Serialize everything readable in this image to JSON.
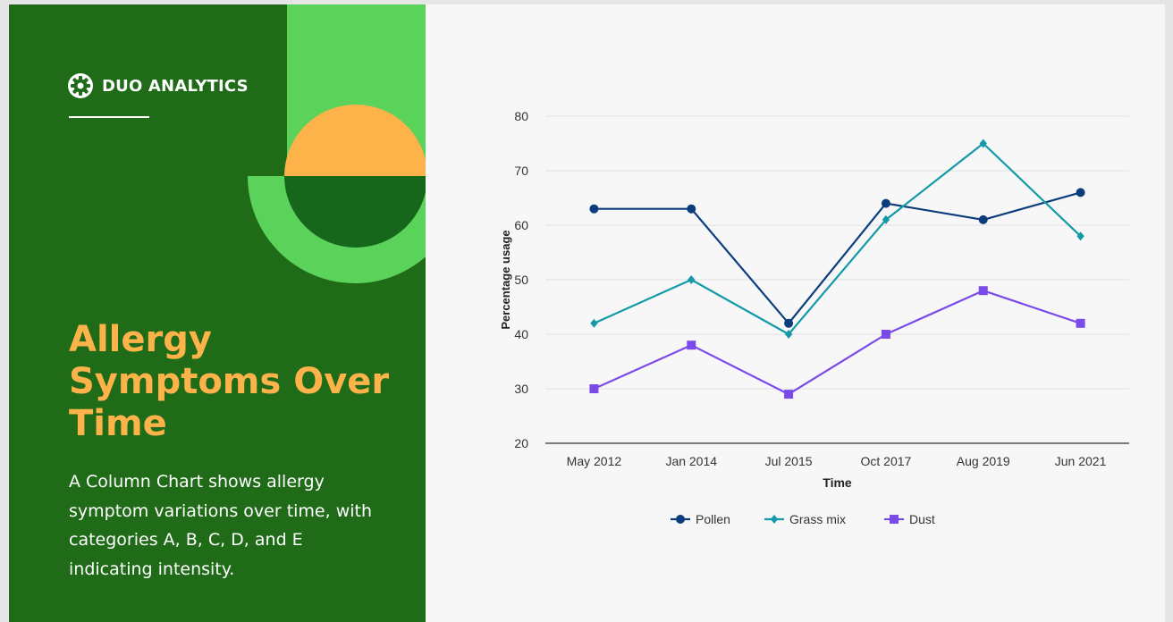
{
  "brand": {
    "name": "DUO ANALYTICS",
    "icon": "gear-icon"
  },
  "title": "Allergy Symptoms Over Time",
  "description": "A Column Chart shows allergy symptom variations over time, with categories A, B, C, D, and E indicating intensity.",
  "colors": {
    "panel": "#1f6b17",
    "accent_green": "#5bd35b",
    "accent_orange": "#fdb34a",
    "dark_green": "#16661c"
  },
  "chart_data": {
    "type": "line",
    "categories": [
      "May 2012",
      "Jan 2014",
      "Jul 2015",
      "Oct 2017",
      "Aug 2019",
      "Jun 2021"
    ],
    "xlabel": "Time",
    "ylabel": "Percentage usage",
    "ylim": [
      20,
      80
    ],
    "yticks": [
      20,
      30,
      40,
      50,
      60,
      70,
      80
    ],
    "grid": true,
    "legend": "bottom",
    "series": [
      {
        "name": "Pollen",
        "values": [
          63,
          63,
          42,
          64,
          61,
          66
        ],
        "color": "#0b3d7c",
        "marker": "circle"
      },
      {
        "name": "Grass mix",
        "values": [
          42,
          50,
          40,
          61,
          75,
          58
        ],
        "color": "#1499a8",
        "marker": "diamond"
      },
      {
        "name": "Dust",
        "values": [
          30,
          38,
          29,
          40,
          48,
          42
        ],
        "color": "#7b4bea",
        "marker": "square"
      }
    ]
  }
}
